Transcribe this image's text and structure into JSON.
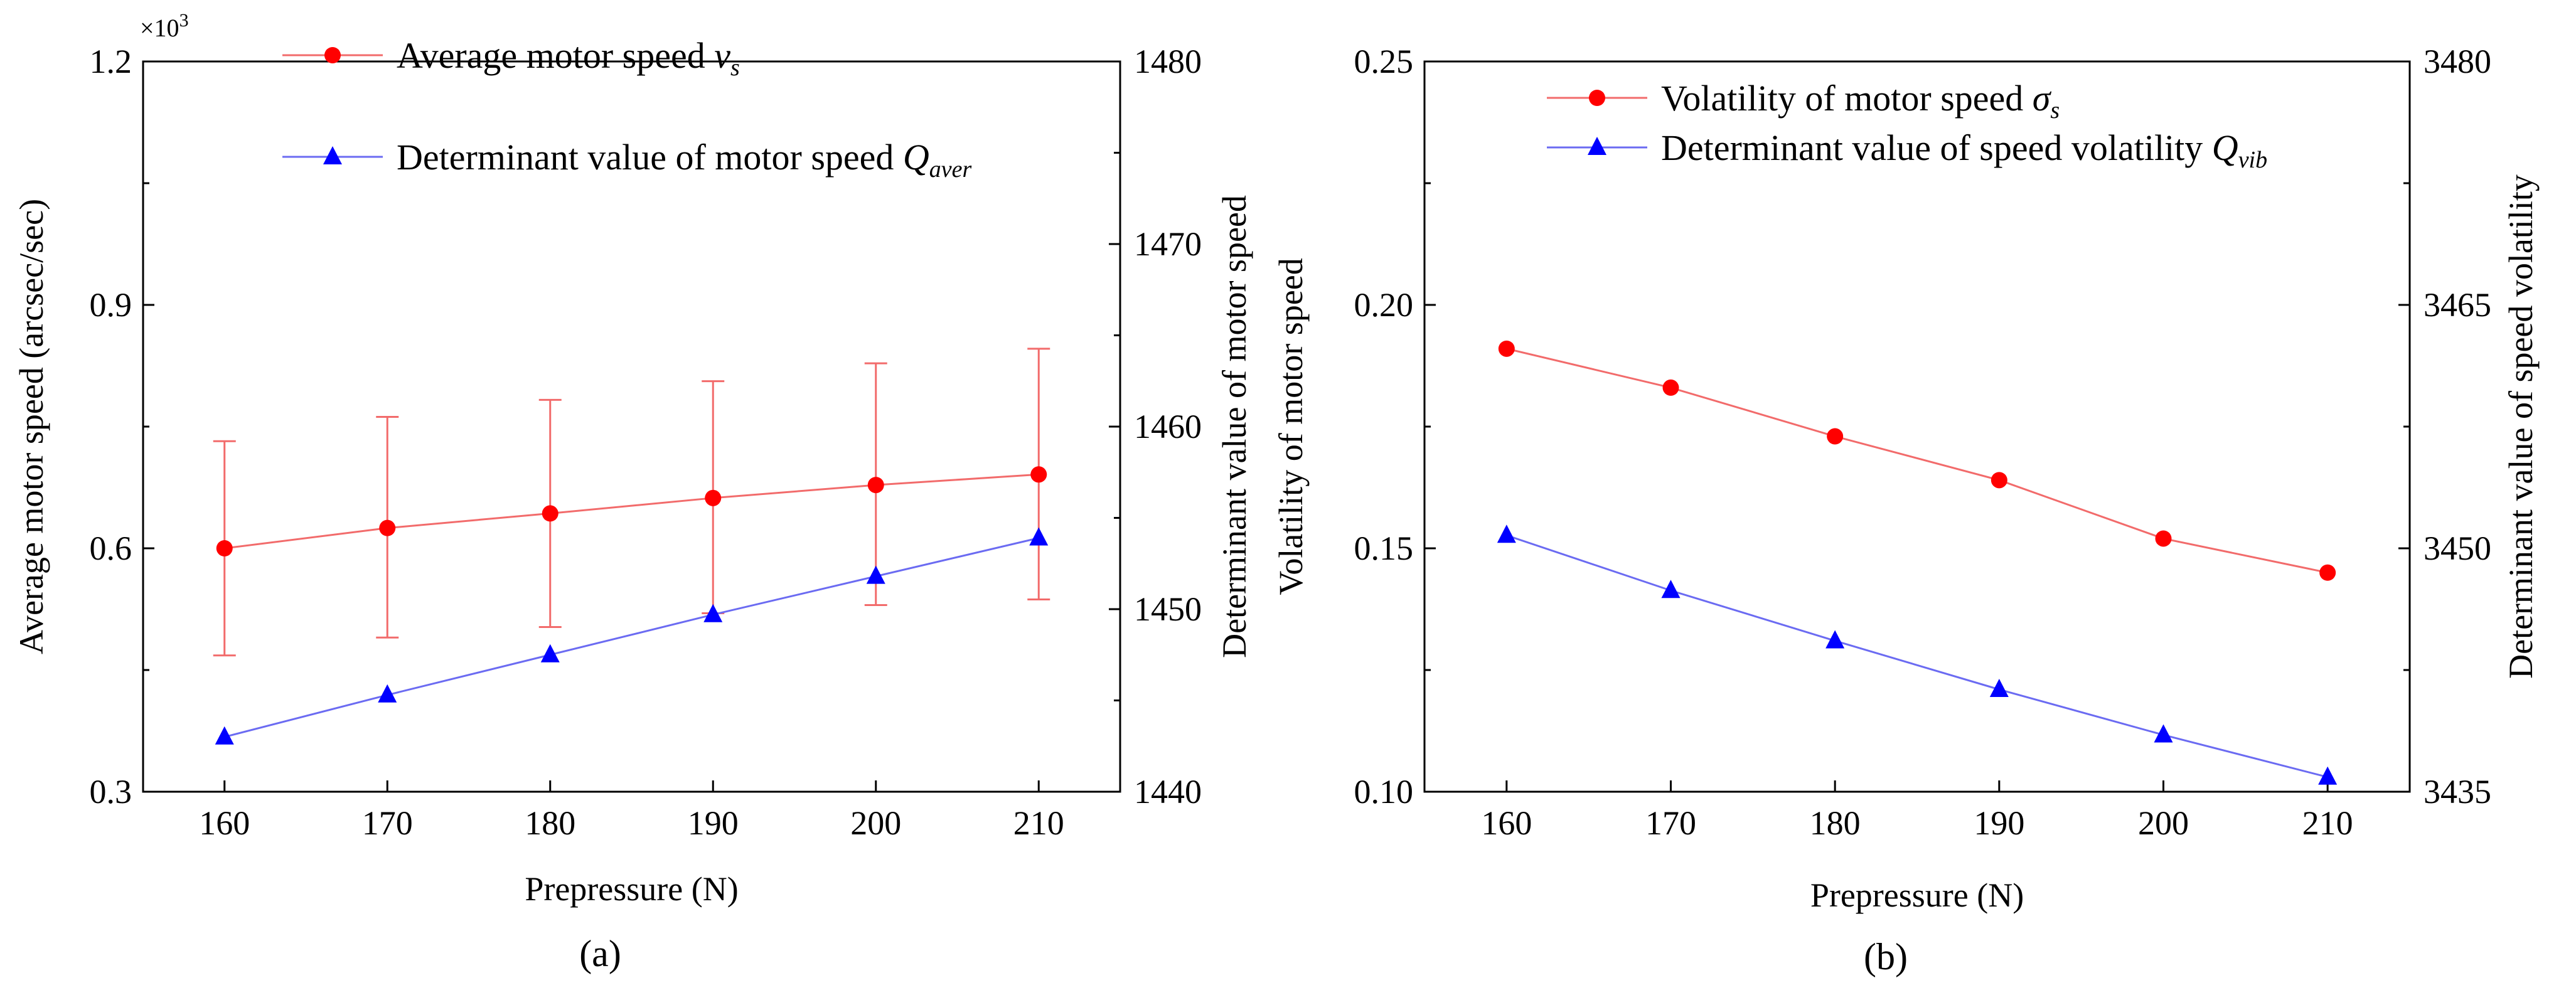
{
  "chart_data": [
    {
      "type": "line",
      "panel_label": "(a)",
      "xlabel": "Prepressure (N)",
      "ylabel": "Average motor speed (arcsec/sec)",
      "y2label": "Determinant value of motor speed",
      "y_multiplier": "×10",
      "y_multiplier_exp": "3",
      "x": [
        160,
        170,
        180,
        190,
        200,
        210
      ],
      "xlim": [
        155,
        215
      ],
      "ylim": [
        0.3,
        1.2
      ],
      "y2lim": [
        1440,
        1480
      ],
      "xticks": [
        "160",
        "170",
        "180",
        "190",
        "200",
        "210"
      ],
      "yticks": [
        "0.3",
        "0.6",
        "0.9",
        "1.2"
      ],
      "y2ticks": [
        "1440",
        "1450",
        "1460",
        "1470",
        "1480"
      ],
      "series": [
        {
          "name": "Average motor speed",
          "legend_text": "Average motor speed ",
          "legend_sym": "v",
          "legend_sub": "s",
          "axis": "left",
          "marker": "circle",
          "color": "#ff0000",
          "line_color": "#f26b6b",
          "values": [
            0.6,
            0.625,
            0.643,
            0.662,
            0.678,
            0.691
          ],
          "err_low": [
            0.468,
            0.49,
            0.503,
            0.52,
            0.53,
            0.537
          ],
          "err_high": [
            0.732,
            0.762,
            0.783,
            0.806,
            0.828,
            0.846
          ]
        },
        {
          "name": "Determinant value of motor speed",
          "legend_text": "Determinant value of motor speed ",
          "legend_sym": "Q",
          "legend_sub": "aver",
          "axis": "right",
          "marker": "triangle",
          "color": "#0000ff",
          "line_color": "#6b6bf2",
          "values": [
            1443.0,
            1445.3,
            1447.5,
            1449.7,
            1451.8,
            1453.9
          ]
        }
      ]
    },
    {
      "type": "line",
      "panel_label": "(b)",
      "xlabel": "Prepressure (N)",
      "ylabel": "Volatility of motor speed",
      "y2label": "Determinant value of speed volatility",
      "x": [
        160,
        170,
        180,
        190,
        200,
        210
      ],
      "xlim": [
        155,
        215
      ],
      "ylim": [
        0.1,
        0.25
      ],
      "y2lim": [
        3435,
        3480
      ],
      "xticks": [
        "160",
        "170",
        "180",
        "190",
        "200",
        "210"
      ],
      "yticks": [
        "0.10",
        "0.15",
        "0.20",
        "0.25"
      ],
      "y2ticks": [
        "3435",
        "3450",
        "3465",
        "3480"
      ],
      "series": [
        {
          "name": "Volatility of motor speed",
          "legend_text": "Volatility of motor speed ",
          "legend_sym": "σ",
          "legend_sub": "s",
          "axis": "left",
          "marker": "circle",
          "color": "#ff0000",
          "line_color": "#f26b6b",
          "values": [
            0.191,
            0.183,
            0.173,
            0.164,
            0.152,
            0.145
          ]
        },
        {
          "name": "Determinant value of speed volatility",
          "legend_text": "Determinant value of speed volatility ",
          "legend_sym": "Q",
          "legend_sub": "vib",
          "axis": "right",
          "marker": "triangle",
          "color": "#0000ff",
          "line_color": "#6b6bf2",
          "values": [
            3450.8,
            3447.4,
            3444.3,
            3441.3,
            3438.5,
            3435.9
          ]
        }
      ]
    }
  ]
}
